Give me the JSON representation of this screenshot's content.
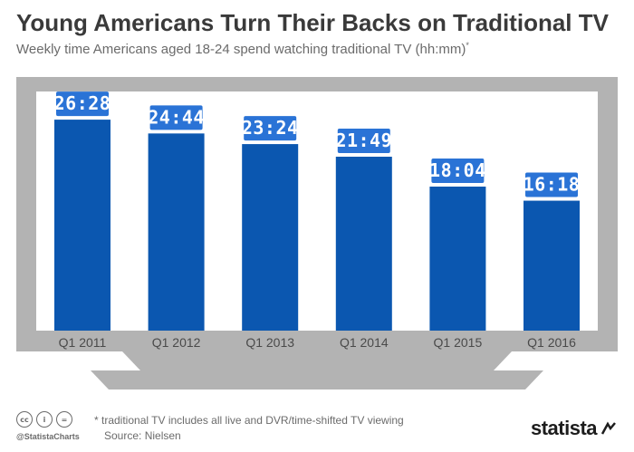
{
  "title": "Young Americans Turn Their Backs on Traditional TV",
  "subtitle": "Weekly time Americans aged 18-24 spend watching traditional TV (hh:mm)",
  "subtitle_marker": "*",
  "footnote": "* traditional TV includes all live and DVR/time-shifted TV viewing",
  "source": "Source: Nielsen",
  "branding": {
    "handle": "@StatistaCharts",
    "logo": "statista",
    "license_icons": [
      "cc",
      "i",
      "="
    ]
  },
  "colors": {
    "bar": "#0b57b0",
    "label_box": "#2a73d6",
    "tv_frame": "#b3b3b3",
    "tv_screen": "#ffffff",
    "title": "#3a3a3a",
    "text": "#6b6b6b"
  },
  "chart_data": {
    "type": "bar",
    "categories": [
      "Q1 2011",
      "Q1 2012",
      "Q1 2013",
      "Q1 2014",
      "Q1 2015",
      "Q1 2016"
    ],
    "values": [
      26.467,
      24.733,
      23.4,
      21.817,
      18.067,
      16.3
    ],
    "data_labels": [
      "26:28",
      "24:44",
      "23:24",
      "21:49",
      "18:04",
      "16:18"
    ],
    "ylim": [
      0,
      30
    ],
    "grid": false,
    "legend": "none"
  }
}
